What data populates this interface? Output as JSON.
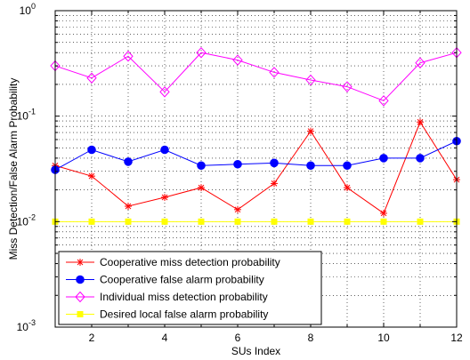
{
  "chart_data": {
    "type": "line",
    "xlabel": "SUs Index",
    "ylabel": "Miss Detection/False Alarm Probability",
    "xlim": [
      1,
      12
    ],
    "ylim": [
      0.001,
      1
    ],
    "yscale": "log",
    "grid": true,
    "grid_style": "dotted",
    "legend_position": "bottom-left",
    "x_ticks": [
      2,
      4,
      6,
      8,
      10,
      12
    ],
    "x_tick_labels": [
      "2",
      "4",
      "6",
      "8",
      "10",
      "12"
    ],
    "y_ticks": [
      0.001,
      0.01,
      0.1,
      1
    ],
    "y_tick_base": "10",
    "y_tick_exponents": [
      "-3",
      "-2",
      "-1",
      "0"
    ],
    "x": [
      1,
      2,
      3,
      4,
      5,
      6,
      7,
      8,
      9,
      10,
      11,
      12
    ],
    "series": [
      {
        "name": "Cooperative miss detection probability",
        "color": "#ff0000",
        "marker": "asterisk",
        "values": [
          0.034,
          0.027,
          0.014,
          0.017,
          0.021,
          0.013,
          0.023,
          0.072,
          0.021,
          0.012,
          0.088,
          0.025
        ]
      },
      {
        "name": "Cooperative false alarm probability",
        "color": "#0000ff",
        "marker": "circle",
        "values": [
          0.031,
          0.048,
          0.037,
          0.048,
          0.034,
          0.035,
          0.036,
          0.034,
          0.034,
          0.04,
          0.04,
          0.058
        ]
      },
      {
        "name": "Individual miss detection probability",
        "color": "#ff00ff",
        "marker": "diamond",
        "values": [
          0.3,
          0.23,
          0.37,
          0.17,
          0.4,
          0.34,
          0.26,
          0.22,
          0.19,
          0.14,
          0.32,
          0.4
        ]
      },
      {
        "name": "Desired local false alarm probability",
        "color": "#ffff00",
        "marker": "square",
        "values": [
          0.01,
          0.01,
          0.01,
          0.01,
          0.01,
          0.01,
          0.01,
          0.01,
          0.01,
          0.01,
          0.01,
          0.01
        ]
      }
    ]
  }
}
